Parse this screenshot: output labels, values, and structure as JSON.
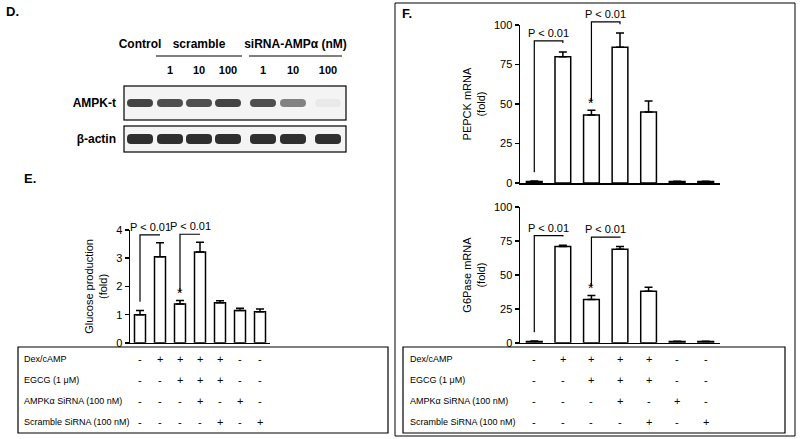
{
  "chart_data": [
    {
      "type": "bar",
      "y_label": "Glucose production\n(fold)",
      "categories": [
        null,
        null,
        null,
        null,
        null,
        null,
        null
      ],
      "values": [
        1.0,
        3.05,
        1.38,
        3.22,
        1.42,
        1.15,
        1.1
      ],
      "errors": [
        0.15,
        0.5,
        0.12,
        0.35,
        0.07,
        0.08,
        0.1
      ],
      "color": "#ffffff",
      "ylim": [
        0,
        4
      ],
      "yticks": [
        0,
        1,
        2,
        3,
        4
      ],
      "grid": false,
      "annotations": [
        {
          "text": "P < 0.01",
          "from": 0,
          "to": 1
        },
        {
          "text": "P < 0.01",
          "from": 2,
          "to": 3
        },
        {
          "text": "*",
          "at": 2
        }
      ]
    },
    {
      "type": "bar",
      "y_label": "PEPCK mRNA\n(fold)",
      "categories": [
        null,
        null,
        null,
        null,
        null,
        null,
        null
      ],
      "values": [
        1,
        80,
        43,
        86,
        45,
        1,
        1
      ],
      "errors": [
        0.3,
        3,
        3,
        9,
        7,
        0.2,
        0.2
      ],
      "color": "#ffffff",
      "ylim": [
        0,
        100
      ],
      "yticks": [
        0,
        25,
        50,
        75,
        100
      ],
      "grid": false,
      "annotations": [
        {
          "text": "P < 0.01",
          "from": 0,
          "to": 1
        },
        {
          "text": "P < 0.01",
          "from": 2,
          "to": 3
        },
        {
          "text": "*",
          "at": 2
        }
      ]
    },
    {
      "type": "bar",
      "y_label": "G6Pase mRNA\n(fold)",
      "categories": [
        null,
        null,
        null,
        null,
        null,
        null,
        null
      ],
      "values": [
        1,
        71,
        32,
        69,
        38,
        1,
        1
      ],
      "errors": [
        0.3,
        1,
        3,
        2,
        3,
        0.2,
        0.2
      ],
      "color": "#ffffff",
      "ylim": [
        0,
        100
      ],
      "yticks": [
        0,
        25,
        50,
        75,
        100
      ],
      "grid": false,
      "annotations": [
        {
          "text": "P < 0.01",
          "from": 0,
          "to": 1
        },
        {
          "text": "P < 0.01",
          "from": 2,
          "to": 3
        },
        {
          "text": "*",
          "at": 2
        }
      ]
    }
  ],
  "panel_labels": [
    "D.",
    "E.",
    "F."
  ],
  "blot": {
    "headers": [
      {
        "text": "Control",
        "lanes": [
          0,
          0
        ]
      },
      {
        "text": "scramble",
        "lanes": [
          1,
          3
        ]
      },
      {
        "text": "siRNA-AMPα (nM)",
        "lanes": [
          4,
          6
        ]
      }
    ],
    "lane_labels": [
      null,
      "1",
      "10",
      "100",
      "1",
      "10",
      "100"
    ],
    "rows": [
      {
        "label": "AMPK-t",
        "intensity": [
          0.85,
          0.8,
          0.8,
          0.85,
          0.8,
          0.55,
          0.05
        ]
      },
      {
        "label": "β-actin",
        "intensity": [
          0.95,
          0.95,
          0.95,
          0.95,
          0.95,
          0.95,
          0.95
        ]
      }
    ]
  },
  "treatment_tables": [
    {
      "rows": [
        {
          "label": "Dex/cAMP",
          "marks": [
            "-",
            "+",
            "+",
            "+",
            "+",
            "-",
            "-"
          ]
        },
        {
          "label": "EGCG (1 μM)",
          "marks": [
            "-",
            "-",
            "+",
            "+",
            "+",
            "-",
            "-"
          ]
        },
        {
          "label": "AMPKα SiRNA (100 nM)",
          "marks": [
            "-",
            "-",
            "-",
            "+",
            "-",
            "+",
            "-"
          ]
        },
        {
          "label": "Scramble SiRNA (100 nM)",
          "marks": [
            "-",
            "-",
            "-",
            "-",
            "+",
            "-",
            "+"
          ]
        }
      ]
    },
    {
      "rows": [
        {
          "label": "Dex/cAMP",
          "marks": [
            "-",
            "+",
            "+",
            "+",
            "+",
            "-",
            "-"
          ]
        },
        {
          "label": "EGCG (1 μM)",
          "marks": [
            "-",
            "-",
            "+",
            "+",
            "+",
            "-",
            "-"
          ]
        },
        {
          "label": "AMPKα SiRNA (100 nM)",
          "marks": [
            "-",
            "-",
            "-",
            "+",
            "-",
            "+",
            "-"
          ]
        },
        {
          "label": "Scramble SiRNA (100 nM)",
          "marks": [
            "-",
            "-",
            "-",
            "-",
            "+",
            "-",
            "+"
          ]
        }
      ]
    }
  ]
}
